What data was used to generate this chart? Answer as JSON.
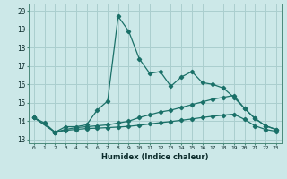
{
  "xlabel": "Humidex (Indice chaleur)",
  "bg_color": "#cce8e8",
  "line_color": "#1a7068",
  "grid_color": "#aacece",
  "ylim": [
    12.8,
    20.4
  ],
  "xlim": [
    -0.5,
    23.5
  ],
  "series1": {
    "x": [
      0,
      1,
      2,
      3,
      4,
      5,
      6,
      7,
      8,
      9,
      10,
      11,
      12,
      13,
      14,
      15,
      16,
      17,
      18,
      19,
      20,
      21,
      22,
      23
    ],
    "y": [
      14.2,
      13.9,
      13.4,
      13.7,
      13.7,
      13.8,
      14.6,
      15.1,
      19.7,
      18.9,
      17.4,
      16.6,
      16.7,
      15.9,
      16.4,
      16.7,
      16.1,
      16.0,
      15.8,
      15.3,
      14.7,
      14.15,
      13.75,
      13.55
    ]
  },
  "series2": {
    "x": [
      0,
      2,
      3,
      4,
      5,
      6,
      7,
      8,
      9,
      10,
      11,
      12,
      13,
      14,
      15,
      16,
      17,
      18,
      19,
      20,
      21,
      22,
      23
    ],
    "y": [
      14.2,
      13.4,
      13.55,
      13.65,
      13.7,
      13.75,
      13.8,
      13.9,
      14.0,
      14.2,
      14.35,
      14.5,
      14.6,
      14.75,
      14.9,
      15.05,
      15.2,
      15.3,
      15.4,
      14.7,
      14.15,
      13.75,
      13.55
    ]
  },
  "series3": {
    "x": [
      0,
      2,
      3,
      4,
      5,
      6,
      7,
      8,
      9,
      10,
      11,
      12,
      13,
      14,
      15,
      16,
      17,
      18,
      19,
      20,
      21,
      22,
      23
    ],
    "y": [
      14.2,
      13.4,
      13.5,
      13.55,
      13.6,
      13.62,
      13.65,
      13.68,
      13.72,
      13.78,
      13.85,
      13.92,
      13.98,
      14.05,
      14.12,
      14.2,
      14.27,
      14.33,
      14.38,
      14.1,
      13.75,
      13.55,
      13.45
    ]
  }
}
